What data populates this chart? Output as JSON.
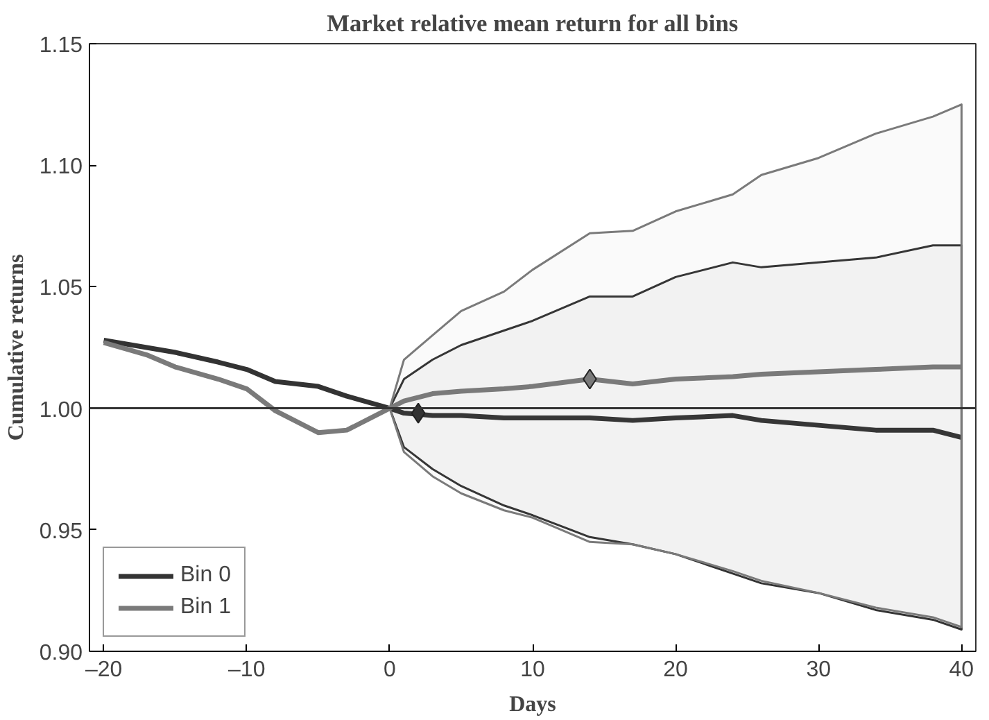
{
  "chart_data": {
    "type": "line",
    "title": "Market relative mean return for all bins",
    "xlabel": "Days",
    "ylabel": "Cumulative returns",
    "x": [
      -20,
      -17,
      -15,
      -12,
      -10,
      -8,
      -5,
      -3,
      0,
      1,
      3,
      5,
      8,
      10,
      14,
      17,
      20,
      24,
      26,
      30,
      34,
      38,
      40
    ],
    "series": [
      {
        "name": "Bin 0",
        "color": "#333333",
        "values": [
          1.028,
          1.025,
          1.023,
          1.019,
          1.016,
          1.011,
          1.009,
          1.005,
          1.0,
          0.998,
          0.997,
          0.997,
          0.996,
          0.996,
          0.996,
          0.995,
          0.996,
          0.997,
          0.995,
          0.993,
          0.991,
          0.991,
          0.988
        ],
        "lower": [
          null,
          null,
          null,
          null,
          null,
          null,
          null,
          null,
          1.0,
          0.984,
          0.975,
          0.968,
          0.96,
          0.956,
          0.947,
          0.944,
          0.94,
          0.932,
          0.928,
          0.924,
          0.917,
          0.913,
          0.909
        ],
        "upper": [
          null,
          null,
          null,
          null,
          null,
          null,
          null,
          null,
          1.0,
          1.012,
          1.02,
          1.026,
          1.032,
          1.036,
          1.046,
          1.046,
          1.054,
          1.06,
          1.058,
          1.06,
          1.062,
          1.067,
          1.067
        ]
      },
      {
        "name": "Bin 1",
        "color": "#7a7a7a",
        "values": [
          1.027,
          1.022,
          1.017,
          1.012,
          1.008,
          0.999,
          0.99,
          0.991,
          1.0,
          1.003,
          1.006,
          1.007,
          1.008,
          1.009,
          1.012,
          1.01,
          1.012,
          1.013,
          1.014,
          1.015,
          1.016,
          1.017,
          1.017
        ],
        "lower": [
          null,
          null,
          null,
          null,
          null,
          null,
          null,
          null,
          1.0,
          0.982,
          0.972,
          0.965,
          0.958,
          0.955,
          0.945,
          0.944,
          0.94,
          0.933,
          0.929,
          0.924,
          0.918,
          0.914,
          0.91
        ],
        "upper": [
          null,
          null,
          null,
          null,
          null,
          null,
          null,
          null,
          1.0,
          1.02,
          1.03,
          1.04,
          1.048,
          1.057,
          1.072,
          1.073,
          1.081,
          1.088,
          1.096,
          1.103,
          1.113,
          1.12,
          1.125
        ]
      },
      {
        "type": "scatter",
        "marker": "diamond",
        "color": "#333333",
        "x": [
          2
        ],
        "values": [
          0.998
        ]
      },
      {
        "type": "scatter",
        "marker": "diamond",
        "color": "#7a7a7a",
        "x": [
          14
        ],
        "values": [
          1.012
        ]
      }
    ],
    "xlim": [
      -21,
      41
    ],
    "ylim": [
      0.9,
      1.15
    ],
    "xticks": [
      {
        "value": -20,
        "label": "–20"
      },
      {
        "value": -10,
        "label": "–10"
      },
      0,
      10,
      20,
      30,
      40
    ],
    "yticks": [
      {
        "value": 0.9,
        "label": "0.90"
      },
      {
        "value": 0.95,
        "label": "0.95"
      },
      {
        "value": 1.0,
        "label": "1.00"
      },
      {
        "value": 1.05,
        "label": "1.05"
      },
      {
        "value": 1.1,
        "label": "1.10"
      },
      {
        "value": 1.15,
        "label": "1.15"
      }
    ],
    "ref_lines": [
      {
        "axis": "y",
        "value": 1.0,
        "color": "#333333"
      }
    ],
    "legend": "bottom left",
    "grid": false,
    "marker": "none",
    "line_style": "solid"
  }
}
